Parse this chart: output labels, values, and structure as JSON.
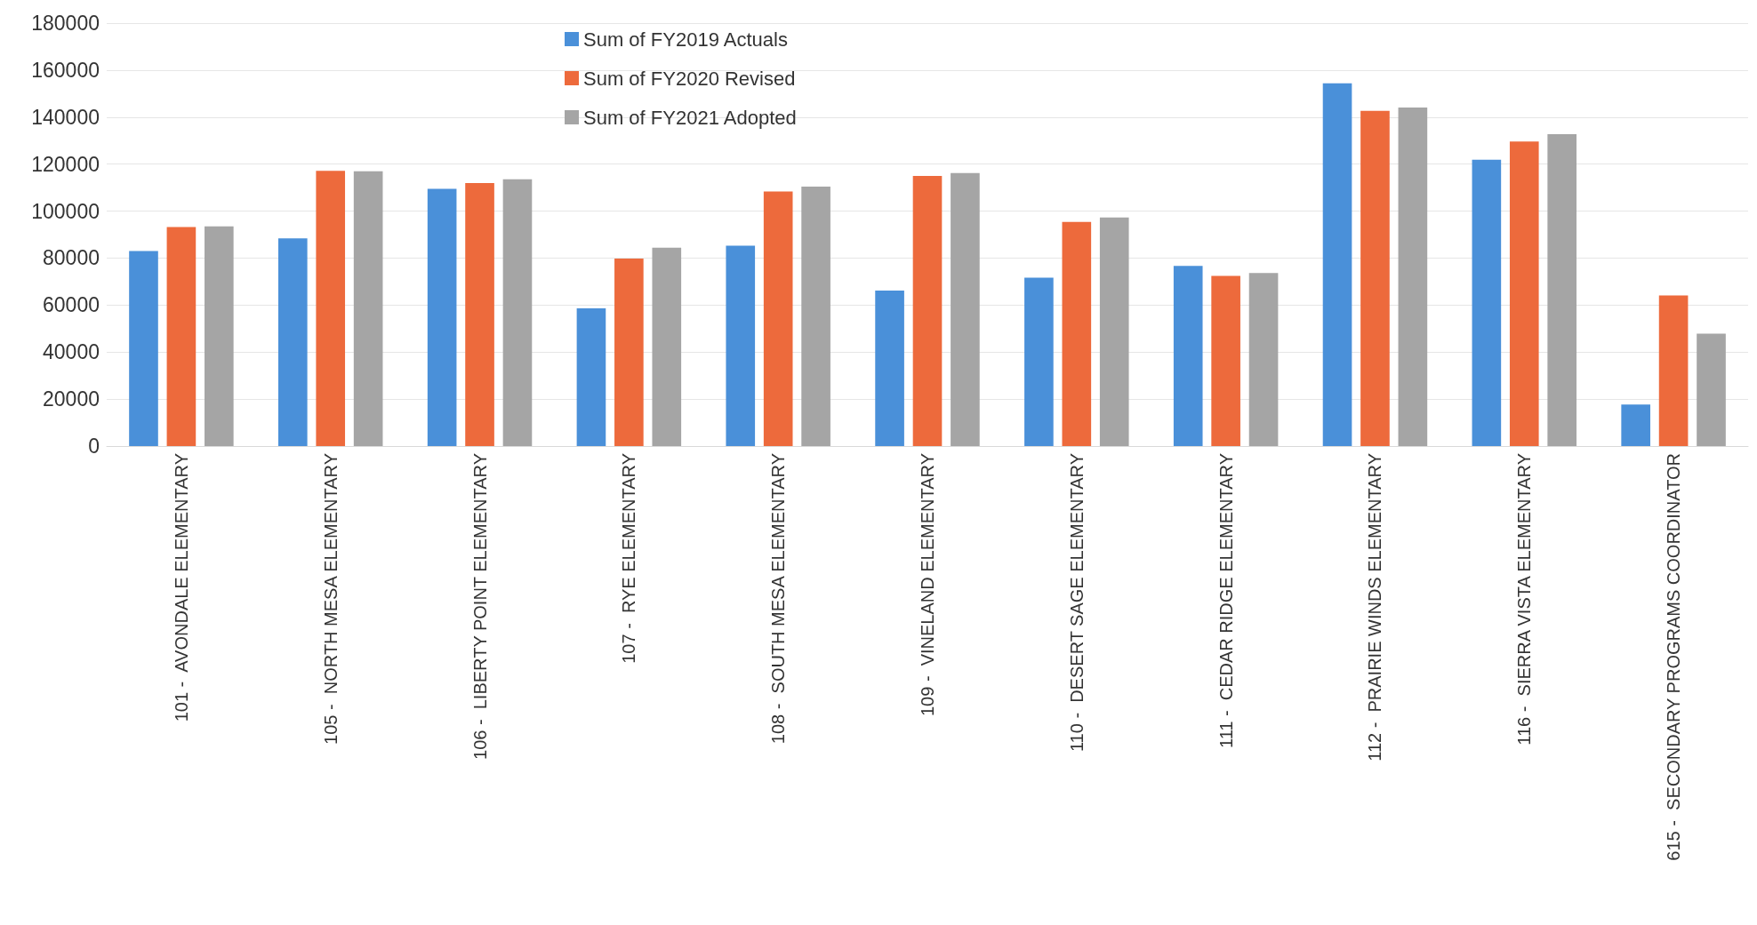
{
  "chart_data": {
    "type": "bar",
    "categories": [
      "101 -  AVONDALE ELEMENTARY",
      "105 -  NORTH MESA ELEMENTARY",
      "106 -  LIBERTY POINT ELEMENTARY",
      "107 -  RYE ELEMENTARY",
      "108 -  SOUTH MESA ELEMENTARY",
      "109 -  VINELAND ELEMENTARY",
      "110 -  DESERT SAGE ELEMENTARY",
      "111 -  CEDAR RIDGE ELEMENTARY",
      "112 -  PRAIRIE WINDS ELEMENTARY",
      "116 -  SIERRA VISTA ELEMENTARY",
      "615 -  SECONDARY PROGRAMS COORDINATOR"
    ],
    "series": [
      {
        "name": "Sum of FY2019 Actuals",
        "color": "#4a90d9",
        "values": [
          83000,
          88400,
          109500,
          58600,
          85300,
          66200,
          71700,
          76700,
          154400,
          121900,
          17700
        ]
      },
      {
        "name": "Sum of FY2020 Revised",
        "color": "#ed6a3c",
        "values": [
          93200,
          117100,
          111900,
          79800,
          108300,
          115000,
          95400,
          72400,
          142700,
          129600,
          64100
        ]
      },
      {
        "name": "Sum of FY2021 Adopted",
        "color": "#a5a5a5",
        "values": [
          93500,
          116900,
          113500,
          84400,
          110400,
          116200,
          97300,
          73600,
          144100,
          132700,
          47800
        ]
      }
    ],
    "ylim": [
      0,
      180000
    ],
    "yticks": [
      0,
      20000,
      40000,
      60000,
      80000,
      100000,
      120000,
      140000,
      160000,
      180000
    ],
    "grid": "y",
    "legend": "top"
  }
}
